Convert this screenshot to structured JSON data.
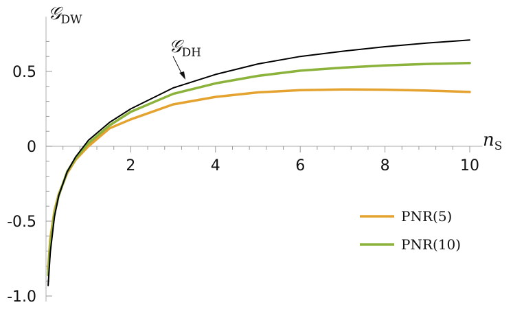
{
  "chart_data": {
    "type": "line",
    "xlabel": "n",
    "xlabel_sub": "S",
    "ylabel": "𝒢",
    "ylabel_sub": "DW",
    "xlim": [
      0,
      10.3
    ],
    "ylim": [
      -1.0,
      0.75
    ],
    "x_ticks": [
      2,
      4,
      6,
      8,
      10
    ],
    "x_tick_labels": [
      "2",
      "4",
      "6",
      "8",
      "10"
    ],
    "y_ticks": [
      -1.0,
      -0.5,
      0,
      0.5
    ],
    "y_tick_labels": [
      "-1.0",
      "-0.5",
      "0",
      "0.5"
    ],
    "grid": false,
    "legend_position": "bottom-right",
    "annotation": {
      "text": "𝒢",
      "sub": "DH",
      "points_to_x": 3.2
    },
    "series": [
      {
        "name": "",
        "color": "#000000",
        "x": [
          0.05,
          0.1,
          0.2,
          0.3,
          0.5,
          0.7,
          1.0,
          1.5,
          2,
          3,
          4,
          5,
          6,
          7,
          8,
          9,
          10
        ],
        "y": [
          -0.93,
          -0.71,
          -0.47,
          -0.33,
          -0.17,
          -0.07,
          0.04,
          0.16,
          0.25,
          0.39,
          0.48,
          0.55,
          0.6,
          0.635,
          0.665,
          0.69,
          0.71
        ]
      },
      {
        "name": "PNR(5)",
        "color": "#E4A22F",
        "x": [
          0.05,
          0.1,
          0.2,
          0.3,
          0.5,
          0.7,
          1.0,
          1.5,
          2,
          3,
          4,
          5,
          6,
          7,
          8,
          9,
          10
        ],
        "y": [
          -0.82,
          -0.62,
          -0.43,
          -0.32,
          -0.18,
          -0.09,
          0.0,
          0.12,
          0.18,
          0.28,
          0.33,
          0.36,
          0.375,
          0.38,
          0.378,
          0.372,
          0.363
        ]
      },
      {
        "name": "PNR(10)",
        "color": "#8BB23A",
        "x": [
          0.05,
          0.1,
          0.2,
          0.3,
          0.5,
          0.7,
          1.0,
          1.5,
          2,
          3,
          4,
          5,
          6,
          7,
          8,
          9,
          10
        ],
        "y": [
          -0.86,
          -0.66,
          -0.45,
          -0.33,
          -0.17,
          -0.08,
          0.02,
          0.14,
          0.23,
          0.35,
          0.42,
          0.47,
          0.505,
          0.525,
          0.54,
          0.55,
          0.556
        ]
      }
    ]
  }
}
